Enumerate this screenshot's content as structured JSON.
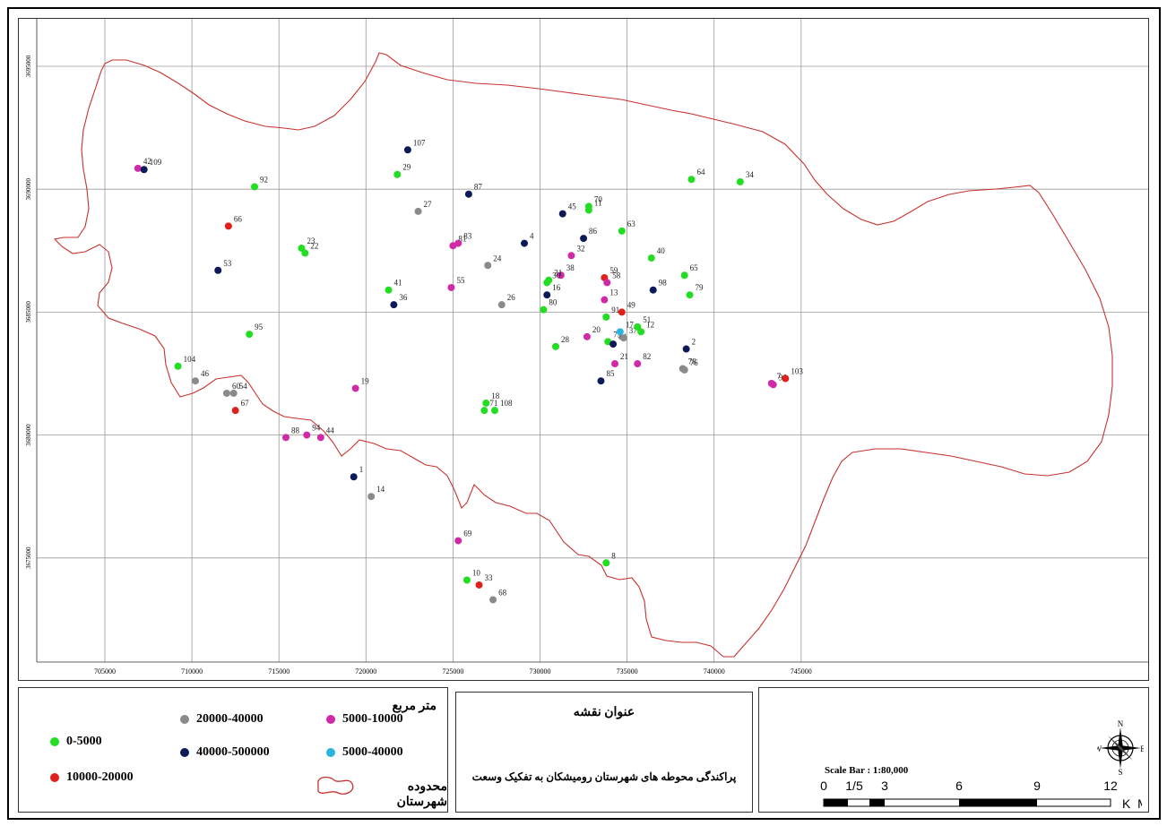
{
  "map": {
    "x_ticks": [
      "705000",
      "710000",
      "715000",
      "720000",
      "725000",
      "730000",
      "735000",
      "740000",
      "745000"
    ],
    "y_ticks": [
      "3695000",
      "3690000",
      "3685000",
      "3680000",
      "3675000"
    ],
    "colors": {
      "green": "#22dd22",
      "red": "#e0201c",
      "gray": "#8a8a8a",
      "navy": "#0d1a5a",
      "magenta": "#d12aa8",
      "cyan": "#2bb3e0",
      "boundary": "#c8322e"
    },
    "points": [
      {
        "label": "42",
        "x": 706900,
        "y": 3690850,
        "c": "magenta"
      },
      {
        "label": "109",
        "x": 707250,
        "y": 3690800,
        "c": "navy"
      },
      {
        "label": "92",
        "x": 713600,
        "y": 3690100,
        "c": "green"
      },
      {
        "label": "66",
        "x": 712100,
        "y": 3688500,
        "c": "red"
      },
      {
        "label": "23",
        "x": 716300,
        "y": 3687600,
        "c": "green"
      },
      {
        "label": "22",
        "x": 716500,
        "y": 3687400,
        "c": "green"
      },
      {
        "label": "53",
        "x": 711500,
        "y": 3686700,
        "c": "navy"
      },
      {
        "label": "95",
        "x": 713300,
        "y": 3684100,
        "c": "green"
      },
      {
        "label": "104",
        "x": 709200,
        "y": 3682800,
        "c": "green"
      },
      {
        "label": "46",
        "x": 710200,
        "y": 3682200,
        "c": "gray"
      },
      {
        "label": "60",
        "x": 712000,
        "y": 3681700,
        "c": "gray"
      },
      {
        "label": "54",
        "x": 712400,
        "y": 3681700,
        "c": "gray"
      },
      {
        "label": "67",
        "x": 712500,
        "y": 3681000,
        "c": "red"
      },
      {
        "label": "88",
        "x": 715400,
        "y": 3679900,
        "c": "magenta"
      },
      {
        "label": "94",
        "x": 716600,
        "y": 3680000,
        "c": "magenta"
      },
      {
        "label": "44",
        "x": 717400,
        "y": 3679900,
        "c": "magenta"
      },
      {
        "label": "19",
        "x": 719400,
        "y": 3681900,
        "c": "magenta"
      },
      {
        "label": "1",
        "x": 719300,
        "y": 3678300,
        "c": "navy"
      },
      {
        "label": "14",
        "x": 720300,
        "y": 3677500,
        "c": "gray"
      },
      {
        "label": "107",
        "x": 722400,
        "y": 3691600,
        "c": "navy"
      },
      {
        "label": "29",
        "x": 721800,
        "y": 3690600,
        "c": "green"
      },
      {
        "label": "27",
        "x": 723000,
        "y": 3689100,
        "c": "gray"
      },
      {
        "label": "41",
        "x": 721300,
        "y": 3685900,
        "c": "green"
      },
      {
        "label": "36",
        "x": 721600,
        "y": 3685300,
        "c": "navy"
      },
      {
        "label": "87",
        "x": 725900,
        "y": 3689800,
        "c": "navy"
      },
      {
        "label": "81",
        "x": 725000,
        "y": 3687700,
        "c": "magenta"
      },
      {
        "label": "83",
        "x": 725300,
        "y": 3687800,
        "c": "magenta"
      },
      {
        "label": "24",
        "x": 727000,
        "y": 3686900,
        "c": "gray"
      },
      {
        "label": "55",
        "x": 724900,
        "y": 3686000,
        "c": "magenta"
      },
      {
        "label": "26",
        "x": 727800,
        "y": 3685300,
        "c": "gray"
      },
      {
        "label": "18",
        "x": 726900,
        "y": 3681300,
        "c": "green"
      },
      {
        "label": "71",
        "x": 726800,
        "y": 3681000,
        "c": "green"
      },
      {
        "label": "108",
        "x": 727400,
        "y": 3681000,
        "c": "green"
      },
      {
        "label": "69",
        "x": 725300,
        "y": 3675700,
        "c": "magenta"
      },
      {
        "label": "10",
        "x": 725800,
        "y": 3674100,
        "c": "green"
      },
      {
        "label": "33",
        "x": 726500,
        "y": 3673900,
        "c": "red"
      },
      {
        "label": "68",
        "x": 727300,
        "y": 3673300,
        "c": "gray"
      },
      {
        "label": "4",
        "x": 729100,
        "y": 3687800,
        "c": "navy"
      },
      {
        "label": "45",
        "x": 731300,
        "y": 3689000,
        "c": "navy"
      },
      {
        "label": "70",
        "x": 732800,
        "y": 3689300,
        "c": "green"
      },
      {
        "label": "11",
        "x": 732800,
        "y": 3689150,
        "c": "green"
      },
      {
        "label": "86",
        "x": 732500,
        "y": 3688000,
        "c": "navy"
      },
      {
        "label": "63",
        "x": 734700,
        "y": 3688300,
        "c": "green"
      },
      {
        "label": "32",
        "x": 731800,
        "y": 3687300,
        "c": "magenta"
      },
      {
        "label": "38",
        "x": 731200,
        "y": 3686500,
        "c": "magenta"
      },
      {
        "label": "31",
        "x": 730500,
        "y": 3686300,
        "c": "green"
      },
      {
        "label": "30",
        "x": 730400,
        "y": 3686200,
        "c": "green"
      },
      {
        "label": "16",
        "x": 730400,
        "y": 3685700,
        "c": "navy"
      },
      {
        "label": "80",
        "x": 730200,
        "y": 3685100,
        "c": "green"
      },
      {
        "label": "28",
        "x": 730900,
        "y": 3683600,
        "c": "green"
      },
      {
        "label": "59",
        "x": 733700,
        "y": 3686400,
        "c": "red"
      },
      {
        "label": "58",
        "x": 733850,
        "y": 3686200,
        "c": "magenta"
      },
      {
        "label": "13",
        "x": 733700,
        "y": 3685500,
        "c": "magenta"
      },
      {
        "label": "91",
        "x": 733800,
        "y": 3684800,
        "c": "green"
      },
      {
        "label": "49",
        "x": 734700,
        "y": 3685000,
        "c": "red"
      },
      {
        "label": "20",
        "x": 732700,
        "y": 3684000,
        "c": "magenta"
      },
      {
        "label": "75",
        "x": 733900,
        "y": 3683800,
        "c": "green"
      },
      {
        "label": "84",
        "x": 734200,
        "y": 3683700,
        "c": "navy"
      },
      {
        "label": "17",
        "x": 734600,
        "y": 3684200,
        "c": "cyan"
      },
      {
        "label": "37",
        "x": 734800,
        "y": 3683950,
        "c": "gray"
      },
      {
        "label": "51",
        "x": 735600,
        "y": 3684400,
        "c": "green"
      },
      {
        "label": "12",
        "x": 735800,
        "y": 3684200,
        "c": "green"
      },
      {
        "label": "21",
        "x": 734300,
        "y": 3682900,
        "c": "magenta"
      },
      {
        "label": "82",
        "x": 735600,
        "y": 3682900,
        "c": "magenta"
      },
      {
        "label": "85",
        "x": 733500,
        "y": 3682200,
        "c": "navy"
      },
      {
        "label": "40",
        "x": 736400,
        "y": 3687200,
        "c": "green"
      },
      {
        "label": "98",
        "x": 736500,
        "y": 3685900,
        "c": "navy"
      },
      {
        "label": "65",
        "x": 738300,
        "y": 3686500,
        "c": "green"
      },
      {
        "label": "79",
        "x": 738600,
        "y": 3685700,
        "c": "green"
      },
      {
        "label": "2",
        "x": 738400,
        "y": 3683500,
        "c": "navy"
      },
      {
        "label": "78",
        "x": 738200,
        "y": 3682700,
        "c": "gray"
      },
      {
        "label": "76",
        "x": 738300,
        "y": 3682650,
        "c": "gray"
      },
      {
        "label": "64",
        "x": 738700,
        "y": 3690400,
        "c": "green"
      },
      {
        "label": "34",
        "x": 741500,
        "y": 3690300,
        "c": "green"
      },
      {
        "label": "7",
        "x": 743300,
        "y": 3682100,
        "c": "magenta"
      },
      {
        "label": "96",
        "x": 743400,
        "y": 3682050,
        "c": "magenta"
      },
      {
        "label": "103",
        "x": 744100,
        "y": 3682300,
        "c": "red"
      },
      {
        "label": "8",
        "x": 733800,
        "y": 3674800,
        "c": "green"
      }
    ]
  },
  "legend": {
    "unit_title": "متر مربع",
    "items": [
      {
        "label": "0-5000",
        "c": "green"
      },
      {
        "label": "10000-20000",
        "c": "red"
      },
      {
        "label": "20000-40000",
        "c": "gray"
      },
      {
        "label": "40000-500000",
        "c": "navy"
      },
      {
        "label": "5000-10000",
        "c": "magenta"
      },
      {
        "label": "5000-40000",
        "c": "cyan"
      }
    ],
    "boundary_label": "محدوده شهرستان"
  },
  "title_box": {
    "title": "عنوان نقشه",
    "subtitle": "پراکندگی محوطه های شهرستان رومیشکان به تفکیک وسعت"
  },
  "scale": {
    "title": "Scale Bar : 1:80,000",
    "ticks": [
      "0",
      "1/5",
      "3",
      "6",
      "9",
      "12"
    ],
    "unit": "K_M"
  },
  "compass": {
    "n": "N",
    "s": "S",
    "e": "E",
    "w": "W"
  }
}
